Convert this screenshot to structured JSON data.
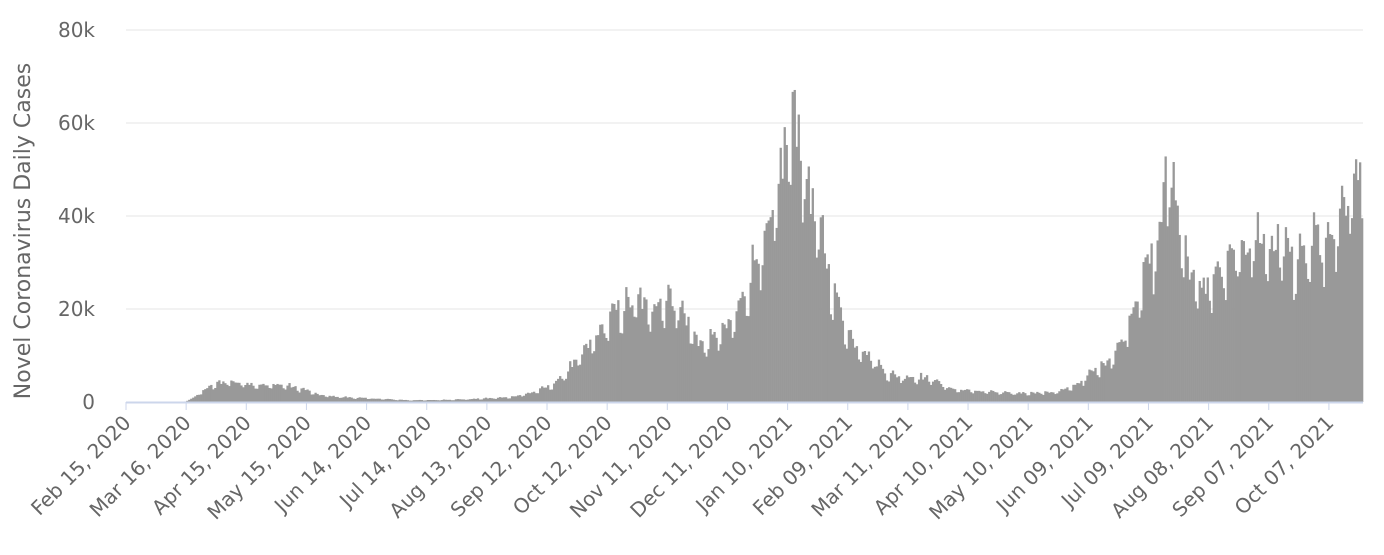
{
  "chart_data": {
    "type": "bar",
    "title": "",
    "ylabel": "Novel Coronavirus Daily Cases",
    "xlabel": "",
    "ylim": [
      0,
      80000
    ],
    "y_ticks": [
      {
        "value": 0,
        "label": "0"
      },
      {
        "value": 20000,
        "label": "20k"
      },
      {
        "value": 40000,
        "label": "40k"
      },
      {
        "value": 60000,
        "label": "60k"
      },
      {
        "value": 80000,
        "label": "80k"
      }
    ],
    "x_ticks": [
      "Feb 15, 2020",
      "Mar 16, 2020",
      "Apr 15, 2020",
      "May 15, 2020",
      "Jun 14, 2020",
      "Jul 14, 2020",
      "Aug 13, 2020",
      "Sep 12, 2020",
      "Oct 12, 2020",
      "Nov 11, 2020",
      "Dec 11, 2020",
      "Jan 10, 2021",
      "Feb 09, 2021",
      "Mar 11, 2021",
      "Apr 10, 2021",
      "May 10, 2021",
      "Jun 09, 2021",
      "Jul 09, 2021",
      "Aug 08, 2021",
      "Sep 07, 2021",
      "Oct 07, 2021"
    ],
    "x_tick_interval_days": 30,
    "bar_color": "#999999",
    "grid": true,
    "legend": "none",
    "series": [
      {
        "start_date": "Feb 15, 2020",
        "days": 617,
        "values": "see keypoints",
        "keypoints": [
          [
            0,
            0
          ],
          [
            28,
            0
          ],
          [
            30,
            300
          ],
          [
            32,
            700
          ],
          [
            35,
            1500
          ],
          [
            40,
            3000
          ],
          [
            45,
            4000
          ],
          [
            50,
            4500
          ],
          [
            55,
            4200
          ],
          [
            60,
            4000
          ],
          [
            65,
            3800
          ],
          [
            70,
            3500
          ],
          [
            75,
            3800
          ],
          [
            80,
            3500
          ],
          [
            85,
            3000
          ],
          [
            90,
            2500
          ],
          [
            95,
            1600
          ],
          [
            100,
            1300
          ],
          [
            110,
            1000
          ],
          [
            120,
            800
          ],
          [
            130,
            600
          ],
          [
            140,
            400
          ],
          [
            150,
            400
          ],
          [
            160,
            500
          ],
          [
            170,
            600
          ],
          [
            180,
            800
          ],
          [
            190,
            1000
          ],
          [
            200,
            1800
          ],
          [
            205,
            2500
          ],
          [
            210,
            3300
          ],
          [
            215,
            4500
          ],
          [
            220,
            7000
          ],
          [
            225,
            9000
          ],
          [
            230,
            12000
          ],
          [
            235,
            14500
          ],
          [
            240,
            17500
          ],
          [
            245,
            20000
          ],
          [
            250,
            21000
          ],
          [
            255,
            22000
          ],
          [
            260,
            20000
          ],
          [
            265,
            22000
          ],
          [
            270,
            22500
          ],
          [
            275,
            21000
          ],
          [
            280,
            17000
          ],
          [
            285,
            13000
          ],
          [
            290,
            12500
          ],
          [
            295,
            15000
          ],
          [
            300,
            16000
          ],
          [
            305,
            20000
          ],
          [
            310,
            26000
          ],
          [
            315,
            33000
          ],
          [
            320,
            35000
          ],
          [
            325,
            45000
          ],
          [
            328,
            55000
          ],
          [
            330,
            58000
          ],
          [
            333,
            62000
          ],
          [
            335,
            59000
          ],
          [
            338,
            50000
          ],
          [
            340,
            47000
          ],
          [
            343,
            39000
          ],
          [
            346,
            37000
          ],
          [
            350,
            28000
          ],
          [
            354,
            22000
          ],
          [
            358,
            17000
          ],
          [
            362,
            13000
          ],
          [
            366,
            12000
          ],
          [
            370,
            10000
          ],
          [
            375,
            8000
          ],
          [
            380,
            6000
          ],
          [
            385,
            5500
          ],
          [
            390,
            5500
          ],
          [
            395,
            5300
          ],
          [
            400,
            5200
          ],
          [
            405,
            4200
          ],
          [
            410,
            3000
          ],
          [
            415,
            2600
          ],
          [
            420,
            2500
          ],
          [
            430,
            2200
          ],
          [
            440,
            1900
          ],
          [
            450,
            2000
          ],
          [
            460,
            2100
          ],
          [
            465,
            2300
          ],
          [
            470,
            3000
          ],
          [
            475,
            4200
          ],
          [
            480,
            6000
          ],
          [
            485,
            7500
          ],
          [
            490,
            9500
          ],
          [
            495,
            12000
          ],
          [
            500,
            18000
          ],
          [
            505,
            25000
          ],
          [
            510,
            30000
          ],
          [
            515,
            36000
          ],
          [
            518,
            48000
          ],
          [
            520,
            52000
          ],
          [
            523,
            43000
          ],
          [
            526,
            38000
          ],
          [
            530,
            28000
          ],
          [
            535,
            24000
          ],
          [
            540,
            26000
          ],
          [
            545,
            28000
          ],
          [
            550,
            30000
          ],
          [
            555,
            32000
          ],
          [
            560,
            35000
          ],
          [
            565,
            36000
          ],
          [
            570,
            33000
          ],
          [
            575,
            35000
          ],
          [
            580,
            32000
          ],
          [
            585,
            30000
          ],
          [
            590,
            33000
          ],
          [
            595,
            35000
          ],
          [
            600,
            33000
          ],
          [
            605,
            40000
          ],
          [
            610,
            44000
          ],
          [
            613,
            49000
          ],
          [
            615,
            47000
          ],
          [
            616,
            36000
          ]
        ]
      }
    ]
  }
}
